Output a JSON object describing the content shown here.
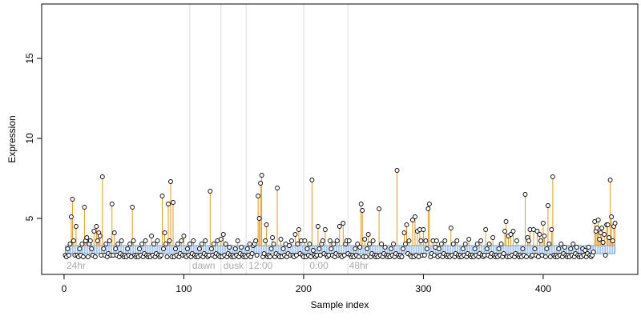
{
  "chart_data": {
    "type": "stem",
    "x_label": "Sample index",
    "y_label": "Expression",
    "xlim": [
      -18.7,
      479
    ],
    "ylim": [
      1.5,
      18.4
    ],
    "xticks": [
      0,
      100,
      200,
      300,
      400
    ],
    "yticks": [
      5,
      10,
      15
    ],
    "point_color": "#000000",
    "stem_color": "#e69a1a",
    "rug_color": "#6fa0e0",
    "vline_color": "#dddddd",
    "vlines": [
      105,
      131,
      152,
      200,
      237
    ],
    "annotations": [
      {
        "text": "24hr",
        "x": 2
      },
      {
        "text": "dawn",
        "x": 107
      },
      {
        "text": "dusk",
        "x": 133
      },
      {
        "text": "12:00",
        "x": 154
      },
      {
        "text": "0:00",
        "x": 205
      },
      {
        "text": "48hr",
        "x": 238
      }
    ],
    "x": [
      1,
      2,
      3,
      4,
      5,
      6,
      7,
      8,
      9,
      10,
      11,
      12,
      13,
      14,
      15,
      16,
      17,
      18,
      19,
      20,
      21,
      22,
      23,
      24,
      25,
      26,
      27,
      28,
      29,
      30,
      31,
      32,
      33,
      34,
      35,
      36,
      37,
      38,
      39,
      40,
      41,
      42,
      43,
      44,
      45,
      46,
      47,
      48,
      49,
      50,
      51,
      52,
      53,
      54,
      55,
      56,
      57,
      58,
      59,
      60,
      61,
      62,
      63,
      64,
      65,
      66,
      67,
      68,
      69,
      70,
      71,
      72,
      73,
      74,
      75,
      76,
      77,
      78,
      79,
      80,
      81,
      82,
      83,
      84,
      85,
      86,
      87,
      88,
      89,
      90,
      91,
      92,
      93,
      94,
      95,
      96,
      97,
      98,
      99,
      100,
      101,
      102,
      103,
      104,
      105,
      106,
      107,
      108,
      109,
      110,
      111,
      112,
      113,
      114,
      115,
      116,
      117,
      118,
      119,
      120,
      121,
      122,
      123,
      124,
      125,
      126,
      127,
      128,
      129,
      130,
      131,
      132,
      133,
      134,
      135,
      136,
      137,
      138,
      139,
      140,
      141,
      142,
      143,
      144,
      145,
      146,
      147,
      148,
      149,
      150,
      151,
      152,
      153,
      154,
      155,
      156,
      157,
      158,
      159,
      160,
      161,
      162,
      163,
      164,
      165,
      166,
      167,
      168,
      169,
      170,
      171,
      172,
      173,
      174,
      175,
      176,
      177,
      178,
      179,
      180,
      181,
      182,
      183,
      184,
      185,
      186,
      187,
      188,
      189,
      190,
      191,
      192,
      193,
      194,
      195,
      196,
      197,
      198,
      199,
      200,
      201,
      202,
      203,
      204,
      205,
      206,
      207,
      208,
      209,
      210,
      211,
      212,
      213,
      214,
      215,
      216,
      217,
      218,
      219,
      220,
      221,
      222,
      223,
      224,
      225,
      226,
      227,
      228,
      229,
      230,
      231,
      232,
      233,
      234,
      235,
      236,
      237,
      238,
      239,
      240,
      241,
      242,
      243,
      244,
      245,
      246,
      247,
      248,
      249,
      250,
      251,
      252,
      253,
      254,
      255,
      256,
      257,
      258,
      259,
      260,
      261,
      262,
      263,
      264,
      265,
      266,
      267,
      268,
      269,
      270,
      271,
      272,
      273,
      274,
      275,
      276,
      277,
      278,
      279,
      280,
      281,
      282,
      283,
      284,
      285,
      286,
      287,
      288,
      289,
      290,
      291,
      292,
      293,
      294,
      295,
      296,
      297,
      298,
      299,
      300,
      301,
      302,
      303,
      304,
      305,
      306,
      307,
      308,
      309,
      310,
      311,
      312,
      313,
      314,
      315,
      316,
      317,
      318,
      319,
      320,
      321,
      322,
      323,
      324,
      325,
      326,
      327,
      328,
      329,
      330,
      331,
      332,
      333,
      334,
      335,
      336,
      337,
      338,
      339,
      340,
      341,
      342,
      343,
      344,
      345,
      346,
      347,
      348,
      349,
      350,
      351,
      352,
      353,
      354,
      355,
      356,
      357,
      358,
      359,
      360,
      361,
      362,
      363,
      364,
      365,
      366,
      367,
      368,
      369,
      370,
      371,
      372,
      373,
      374,
      375,
      376,
      377,
      378,
      379,
      380,
      381,
      382,
      383,
      384,
      385,
      386,
      387,
      388,
      389,
      390,
      391,
      392,
      393,
      394,
      395,
      396,
      397,
      398,
      399,
      400,
      401,
      402,
      403,
      404,
      405,
      406,
      407,
      408,
      409,
      410,
      411,
      412,
      413,
      414,
      415,
      416,
      417,
      418,
      419,
      420,
      421,
      422,
      423,
      424,
      425,
      426,
      427,
      428,
      429,
      430,
      431,
      432,
      433,
      434,
      435,
      436,
      437,
      438,
      439,
      440,
      441,
      442,
      443,
      444,
      445,
      446,
      447,
      448,
      449,
      450,
      451,
      452,
      453,
      454,
      455,
      456,
      457,
      458,
      459,
      460
    ],
    "values": [
      2.7,
      2.6,
      3.1,
      2.7,
      3.4,
      5.1,
      6.2,
      3.6,
      2.7,
      4.5,
      2.7,
      2.6,
      3.1,
      2.7,
      3.4,
      2.6,
      5.7,
      3.6,
      3.8,
      2.6,
      3.4,
      3.6,
      3.1,
      2.7,
      4.2,
      2.6,
      4.5,
      3.6,
      4.1,
      3.9,
      2.7,
      7.6,
      3.1,
      2.7,
      3.4,
      2.6,
      2.8,
      3.6,
      2.7,
      5.9,
      2.7,
      4.1,
      3.1,
      2.7,
      3.4,
      2.6,
      2.8,
      3.6,
      2.7,
      2.6,
      2.7,
      2.6,
      3.1,
      2.7,
      3.4,
      2.6,
      5.7,
      3.6,
      2.7,
      2.6,
      2.7,
      2.6,
      3.1,
      2.7,
      3.4,
      2.6,
      2.8,
      3.6,
      2.7,
      2.6,
      2.7,
      2.6,
      3.9,
      2.7,
      3.4,
      2.6,
      2.8,
      3.6,
      2.7,
      2.6,
      2.7,
      6.4,
      3.1,
      4.1,
      3.4,
      2.6,
      5.9,
      3.6,
      7.3,
      2.6,
      6.0,
      2.6,
      3.1,
      2.7,
      3.4,
      2.6,
      2.8,
      3.6,
      2.7,
      3.9,
      2.7,
      2.6,
      3.1,
      2.7,
      3.4,
      2.6,
      2.8,
      3.6,
      2.7,
      2.6,
      2.7,
      2.6,
      3.1,
      2.7,
      3.4,
      2.6,
      2.8,
      3.6,
      2.7,
      2.6,
      2.7,
      6.7,
      3.1,
      2.7,
      3.4,
      2.6,
      2.8,
      3.6,
      2.7,
      2.6,
      3.7,
      2.6,
      4.0,
      2.7,
      3.4,
      2.6,
      2.8,
      3.2,
      2.7,
      2.6,
      2.7,
      2.6,
      3.1,
      2.7,
      3.6,
      2.6,
      2.8,
      3.2,
      2.7,
      2.6,
      2.7,
      2.6,
      3.1,
      2.7,
      3.4,
      2.6,
      2.8,
      3.3,
      3.4,
      3.6,
      2.7,
      6.4,
      5.0,
      7.2,
      7.7,
      2.6,
      2.8,
      3.6,
      4.6,
      2.6,
      2.7,
      2.6,
      3.1,
      3.8,
      3.4,
      2.6,
      2.8,
      6.9,
      2.7,
      2.6,
      3.7,
      2.6,
      3.1,
      2.7,
      3.4,
      2.6,
      2.8,
      3.3,
      2.7,
      3.6,
      2.7,
      2.6,
      4.0,
      2.7,
      3.4,
      4.3,
      2.8,
      3.6,
      2.7,
      2.6,
      3.6,
      2.6,
      3.1,
      2.7,
      3.4,
      2.6,
      7.4,
      3.0,
      2.7,
      2.6,
      2.7,
      4.5,
      3.1,
      2.7,
      3.4,
      3.6,
      2.8,
      4.3,
      2.7,
      2.6,
      2.7,
      3.6,
      3.1,
      2.7,
      3.4,
      2.6,
      2.8,
      3.6,
      2.7,
      4.5,
      2.7,
      2.6,
      4.7,
      2.7,
      3.4,
      3.6,
      2.8,
      3.6,
      2.7,
      2.6,
      2.7,
      2.6,
      3.1,
      2.7,
      3.4,
      2.6,
      3.2,
      5.9,
      5.5,
      2.6,
      3.7,
      2.6,
      3.1,
      4.0,
      3.4,
      2.6,
      2.8,
      3.6,
      2.7,
      2.6,
      2.7,
      2.6,
      5.6,
      2.7,
      3.4,
      2.6,
      2.8,
      3.2,
      2.7,
      2.6,
      2.7,
      2.6,
      3.1,
      2.7,
      3.4,
      2.6,
      2.8,
      8.0,
      2.7,
      2.6,
      2.7,
      2.6,
      3.1,
      4.1,
      3.4,
      4.6,
      2.8,
      3.6,
      2.7,
      2.6,
      4.9,
      2.6,
      5.1,
      2.7,
      4.2,
      2.6,
      4.3,
      3.6,
      2.7,
      4.3,
      2.7,
      3.6,
      3.1,
      5.6,
      5.9,
      2.6,
      2.8,
      3.6,
      2.7,
      3.2,
      3.6,
      2.6,
      3.1,
      2.7,
      3.4,
      2.6,
      2.8,
      3.6,
      2.7,
      2.6,
      2.7,
      2.6,
      4.4,
      2.7,
      3.4,
      2.6,
      2.8,
      3.6,
      2.7,
      2.6,
      2.7,
      2.6,
      3.1,
      2.7,
      3.4,
      2.6,
      2.8,
      3.7,
      2.7,
      2.6,
      2.7,
      2.6,
      3.1,
      2.7,
      3.4,
      2.6,
      2.8,
      3.6,
      2.7,
      2.6,
      2.7,
      4.3,
      3.1,
      2.7,
      3.4,
      2.6,
      2.8,
      3.8,
      2.7,
      2.6,
      2.7,
      2.6,
      3.1,
      2.7,
      3.4,
      2.6,
      2.8,
      4.2,
      4.8,
      2.6,
      3.9,
      2.6,
      4.0,
      2.7,
      4.2,
      2.6,
      2.8,
      3.6,
      2.7,
      2.6,
      2.7,
      2.6,
      3.1,
      2.7,
      6.5,
      2.6,
      3.8,
      3.6,
      4.3,
      2.6,
      2.7,
      4.3,
      3.1,
      2.7,
      4.2,
      2.6,
      4.0,
      3.6,
      2.7,
      4.7,
      3.9,
      2.6,
      3.1,
      5.8,
      3.4,
      2.6,
      4.3,
      7.6,
      2.7,
      2.6,
      2.7,
      2.6,
      3.1,
      2.7,
      3.4,
      2.6,
      2.8,
      3.2,
      2.7,
      2.6,
      2.7,
      2.6,
      3.1,
      2.7,
      3.4,
      2.6,
      2.8,
      3.2,
      2.7,
      2.6,
      2.7,
      2.6,
      3.1,
      2.7,
      3.0,
      2.6,
      2.8,
      3.2,
      2.7,
      2.6,
      2.7,
      2.9,
      4.8,
      4.2,
      4.4,
      4.9,
      3.7,
      4.1,
      4.4,
      3.5,
      4.0,
      2.7,
      4.6,
      4.6,
      3.8,
      7.4,
      5.1,
      3.6,
      4.5,
      4.7
    ]
  }
}
